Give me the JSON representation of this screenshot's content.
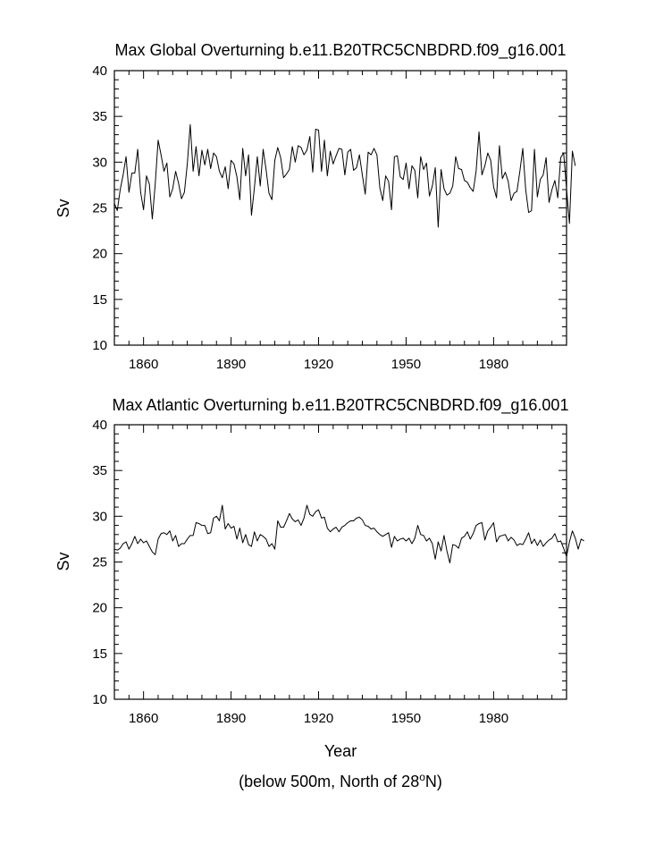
{
  "chart_data": [
    {
      "type": "line",
      "title": "Max Global Overturning b.e11.B20TRC5CNBDRD.f09_g16.001",
      "ylabel": "Sv",
      "xlabel": "",
      "xlim": [
        1850,
        2005
      ],
      "ylim": [
        10,
        40
      ],
      "xticks": [
        1860,
        1890,
        1920,
        1950,
        1980
      ],
      "yticks": [
        10,
        15,
        20,
        25,
        30,
        35,
        40
      ],
      "x_start": 1850,
      "values": [
        25.5,
        24.7,
        27.0,
        28.6,
        30.6,
        26.7,
        28.8,
        28.8,
        31.4,
        26.7,
        24.8,
        28.5,
        27.6,
        23.8,
        27.6,
        32.4,
        30.8,
        29.0,
        29.9,
        26.2,
        27.1,
        29.0,
        27.7,
        26.0,
        26.7,
        29.8,
        34.1,
        29.0,
        31.7,
        28.5,
        31.3,
        29.7,
        31.4,
        29.3,
        31.0,
        30.6,
        29.0,
        28.3,
        29.5,
        27.1,
        30.2,
        29.8,
        28.4,
        25.9,
        31.5,
        28.5,
        30.8,
        24.2,
        27.2,
        30.6,
        27.4,
        31.4,
        29.2,
        26.6,
        25.9,
        30.2,
        31.6,
        30.5,
        28.3,
        28.7,
        29.2,
        31.7,
        30.0,
        31.8,
        31.6,
        30.8,
        31.3,
        32.8,
        28.9,
        33.6,
        33.5,
        29.0,
        32.4,
        28.5,
        31.2,
        29.8,
        30.7,
        31.5,
        31.4,
        28.6,
        31.1,
        31.4,
        29.1,
        29.4,
        30.8,
        28.6,
        26.5,
        31.1,
        30.8,
        31.5,
        30.8,
        27.2,
        25.8,
        28.5,
        27.9,
        24.8,
        30.6,
        30.7,
        28.4,
        28.1,
        29.9,
        27.1,
        29.6,
        29.1,
        26.1,
        30.6,
        29.2,
        29.9,
        26.3,
        27.4,
        29.4,
        22.9,
        29.2,
        27.1,
        26.4,
        26.6,
        27.4,
        30.6,
        29.3,
        29.2,
        28.0,
        27.8,
        27.2,
        26.8,
        29.0,
        33.3,
        28.6,
        29.6,
        31.0,
        30.2,
        27.3,
        26.1,
        31.8,
        28.2,
        28.9,
        27.9,
        25.8,
        26.6,
        26.8,
        29.0,
        31.5,
        27.0,
        24.5,
        24.7,
        31.4,
        26.2,
        28.1,
        28.6,
        30.5,
        25.6,
        27.0,
        28.0,
        26.1,
        30.5,
        31.0,
        27.1,
        23.3,
        31.2,
        29.6
      ]
    },
    {
      "type": "line",
      "title": "Max Atlantic Overturning b.e11.B20TRC5CNBDRD.f09_g16.001",
      "ylabel": "Sv",
      "xlabel": "Year",
      "xlim": [
        1850,
        2005
      ],
      "ylim": [
        10,
        40
      ],
      "xticks": [
        1860,
        1890,
        1920,
        1950,
        1980
      ],
      "yticks": [
        10,
        15,
        20,
        25,
        30,
        35,
        40
      ],
      "x_start": 1850,
      "values": [
        26.4,
        26.3,
        26.5,
        27.0,
        27.2,
        26.4,
        27.0,
        27.8,
        27.0,
        27.5,
        27.1,
        27.3,
        26.7,
        26.1,
        25.8,
        27.5,
        28.1,
        28.2,
        28.0,
        28.4,
        27.3,
        27.9,
        26.7,
        27.0,
        27.0,
        27.5,
        27.9,
        27.9,
        29.3,
        29.2,
        29.0,
        29.0,
        28.1,
        28.2,
        29.8,
        30.0,
        29.5,
        31.2,
        28.6,
        29.2,
        28.7,
        28.9,
        27.5,
        28.7,
        27.1,
        28.0,
        26.9,
        26.7,
        28.3,
        27.3,
        28.0,
        27.8,
        27.5,
        26.7,
        27.0,
        26.4,
        29.5,
        28.8,
        28.8,
        29.5,
        30.3,
        29.7,
        29.4,
        29.6,
        29.0,
        29.8,
        31.2,
        30.2,
        30.0,
        30.5,
        30.7,
        29.8,
        29.9,
        28.7,
        28.3,
        28.6,
        28.8,
        28.3,
        28.8,
        29.0,
        29.3,
        29.5,
        29.5,
        29.8,
        29.9,
        29.6,
        29.0,
        28.9,
        28.6,
        28.7,
        28.3,
        28.0,
        27.8,
        28.0,
        28.2,
        26.6,
        27.8,
        27.3,
        27.5,
        27.6,
        27.3,
        27.6,
        27.0,
        27.6,
        29.0,
        28.0,
        27.9,
        27.3,
        27.6,
        27.0,
        25.3,
        27.2,
        26.2,
        27.9,
        26.2,
        24.9,
        26.9,
        26.8,
        26.5,
        27.6,
        27.8,
        28.3,
        27.5,
        28.1,
        29.0,
        29.2,
        29.3,
        27.4,
        28.4,
        28.8,
        29.3,
        27.2,
        27.8,
        27.9,
        28.0,
        27.3,
        27.7,
        27.4,
        26.8,
        27.0,
        26.9,
        27.5,
        28.2,
        27.0,
        27.5,
        26.8,
        27.4,
        26.7,
        27.1,
        27.4,
        27.6,
        28.1,
        27.2,
        27.3,
        26.5,
        25.6,
        27.2,
        28.4,
        27.6,
        26.4,
        27.5,
        27.3
      ]
    }
  ],
  "footnote": {
    "prefix": "(below 500m, North of 28",
    "sup": "o",
    "suffix": "N)"
  }
}
